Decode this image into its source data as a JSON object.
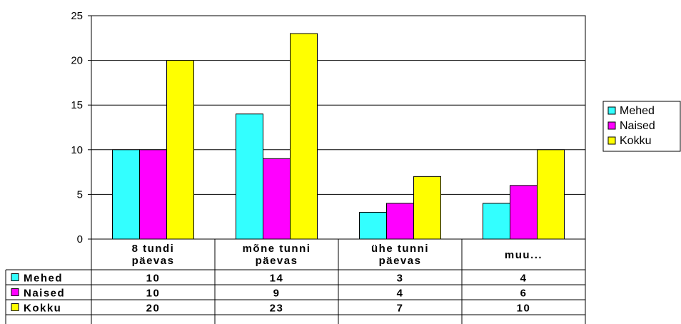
{
  "chart_data": {
    "type": "bar",
    "categories": [
      [
        "8 tundi",
        "päevas"
      ],
      [
        "mõne tunni",
        "päevas"
      ],
      [
        "ühe tunni",
        "päevas"
      ],
      [
        "muu..."
      ]
    ],
    "series": [
      {
        "name": "Mehed",
        "color": "#33FFFF",
        "values": [
          10,
          14,
          3,
          4
        ]
      },
      {
        "name": "Naised",
        "color": "#FF00FF",
        "values": [
          10,
          9,
          4,
          6
        ]
      },
      {
        "name": "Kokku",
        "color": "#FFFF00",
        "values": [
          20,
          23,
          7,
          10
        ]
      }
    ],
    "ylim": [
      0,
      25
    ],
    "yticks": [
      0,
      5,
      10,
      15,
      20,
      25
    ],
    "grid": true,
    "legend": "right",
    "data_table": true
  }
}
